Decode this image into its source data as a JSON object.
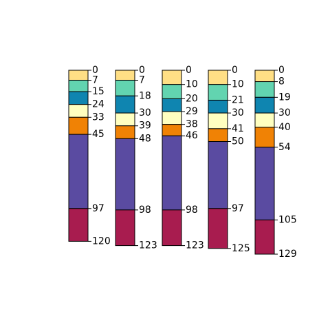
{
  "chart_data": {
    "type": "bar",
    "subtype": "stacked-depth-profile",
    "grid": false,
    "legend": "none",
    "depth_axis_reversed": true,
    "colors": [
      "#FFDF85",
      "#62D4B0",
      "#0F85B0",
      "#FFFFC0",
      "#F08205",
      "#5A4BA1",
      "#A81C4F"
    ],
    "profiles": [
      {
        "breaks": [
          0,
          7,
          15,
          24,
          33,
          45,
          97,
          120
        ]
      },
      {
        "breaks": [
          0,
          7,
          18,
          30,
          39,
          48,
          98,
          123
        ]
      },
      {
        "breaks": [
          0,
          10,
          20,
          29,
          38,
          46,
          98,
          123
        ]
      },
      {
        "breaks": [
          0,
          10,
          21,
          30,
          41,
          50,
          97,
          125
        ]
      },
      {
        "breaks": [
          0,
          8,
          19,
          30,
          40,
          54,
          105,
          129
        ]
      }
    ]
  }
}
